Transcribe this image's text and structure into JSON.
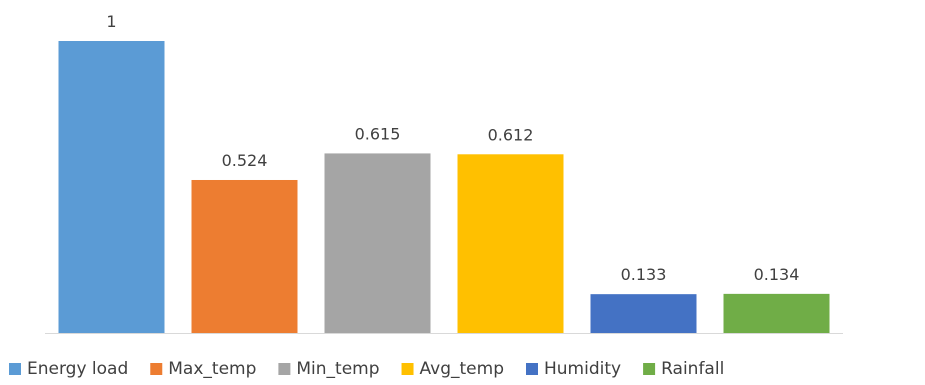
{
  "chart_data": {
    "type": "bar",
    "categories": [
      "Energy load",
      "Max_temp",
      "Min_temp",
      "Avg_temp",
      "Humidity",
      "Rainfall"
    ],
    "values": [
      1,
      0.524,
      0.615,
      0.612,
      0.133,
      0.134
    ],
    "data_labels": [
      "1",
      "0.524",
      "0.615",
      "0.612",
      "0.133",
      "0.134"
    ],
    "colors": [
      "#5B9BD5",
      "#ED7D31",
      "#A5A5A5",
      "#FFC000",
      "#4472C4",
      "#70AD47"
    ],
    "title": "",
    "xlabel": "",
    "ylabel": "",
    "ylim": [
      0,
      1
    ],
    "grid": false,
    "legend": "bottom",
    "axis_line_color": "#D9D9D9"
  }
}
